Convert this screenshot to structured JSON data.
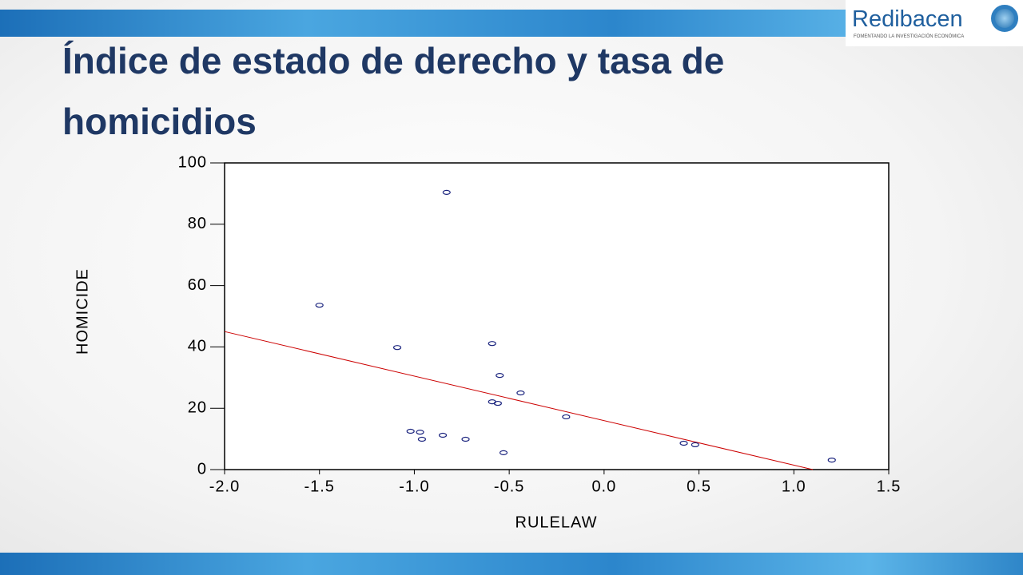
{
  "logo": {
    "name": "Redibacen",
    "tagline": "FOMENTANDO LA INVESTIGACIÓN ECONÓMICA"
  },
  "chart_data": {
    "type": "scatter",
    "title": "Índice de estado de derecho y tasa de homicidios",
    "x_label": "RULELAW",
    "y_label": "HOMICIDE",
    "series": [
      {
        "name": "HOMICIDE",
        "color": "#1a237e",
        "x": [
          -1.5,
          -1.09,
          -0.83,
          -0.59,
          -0.55,
          -0.44,
          -0.59,
          -0.56,
          -0.2,
          -1.02,
          -0.97,
          -0.96,
          -0.85,
          -0.73,
          -0.53,
          0.42,
          0.48,
          1.2
        ],
        "values": [
          53.6,
          39.8,
          90.4,
          41.1,
          30.7,
          25,
          22.1,
          21.6,
          17.2,
          12.5,
          12.2,
          9.9,
          11.2,
          9.9,
          5.5,
          8.6,
          8.1,
          3.1
        ]
      }
    ],
    "trend_line": {
      "color": "#cc0000",
      "x": [
        -2,
        1.1
      ],
      "y": [
        45,
        0
      ]
    },
    "xlim": [
      -2,
      1.5
    ],
    "xticks": [
      {
        "value": -2,
        "label": "-2.0"
      },
      {
        "value": -1.5,
        "label": "-1.5"
      },
      {
        "value": -1,
        "label": "-1.0"
      },
      -0.5,
      {
        "value": 0,
        "label": "0.0"
      },
      0.5,
      {
        "value": 1,
        "label": "1.0"
      },
      1.5
    ],
    "ylim": [
      0,
      100
    ],
    "yticks": [
      0,
      20,
      40,
      60,
      80,
      100
    ]
  }
}
